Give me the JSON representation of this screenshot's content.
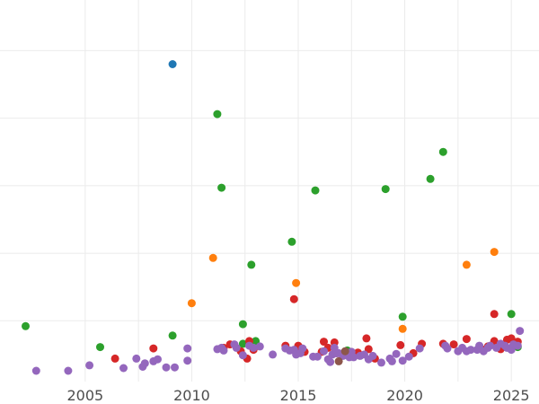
{
  "chart_data": {
    "type": "scatter",
    "title": "",
    "xlabel": "",
    "ylabel": "",
    "xlim": [
      2001.0,
      2026.3
    ],
    "ylim": [
      -0.4,
      5.25
    ],
    "x_ticks": [
      2005,
      2010,
      2015,
      2020,
      2025
    ],
    "x_tick_labels": [
      "2005",
      "2010",
      "2015",
      "2020",
      "2025"
    ],
    "y_gridlines": [
      0.5,
      1.5,
      2.5,
      3.5,
      4.5
    ],
    "x_minor_gridlines": [
      2007.5,
      2012.5,
      2017.5,
      2022.5
    ],
    "y_tick_labels_visible": false,
    "grid": true,
    "legend": "none",
    "colors": {
      "blue": "#1f77b4",
      "orange": "#ff7f0e",
      "green": "#2ca02c",
      "red": "#d62728",
      "purple": "#9467bd",
      "brown": "#8c564b"
    },
    "series": [
      {
        "color": "#1f77b4",
        "points": [
          [
            2009.1,
            4.3
          ]
        ]
      },
      {
        "color": "#ff7f0e",
        "points": [
          [
            2010.0,
            0.76
          ],
          [
            2011.0,
            1.43
          ],
          [
            2014.9,
            1.06
          ],
          [
            2019.9,
            0.38
          ],
          [
            2022.9,
            1.33
          ],
          [
            2024.2,
            1.52
          ]
        ]
      },
      {
        "color": "#2ca02c",
        "points": [
          [
            2002.2,
            0.42
          ],
          [
            2005.7,
            0.11
          ],
          [
            2009.1,
            0.28
          ],
          [
            2011.2,
            3.56
          ],
          [
            2011.4,
            2.47
          ],
          [
            2012.4,
            0.45
          ],
          [
            2012.4,
            0.16
          ],
          [
            2012.8,
            1.33
          ],
          [
            2013.0,
            0.2
          ],
          [
            2014.7,
            1.67
          ],
          [
            2015.8,
            2.43
          ],
          [
            2017.3,
            0.06
          ],
          [
            2019.1,
            2.45
          ],
          [
            2019.9,
            0.56
          ],
          [
            2021.2,
            2.6
          ],
          [
            2021.8,
            3.0
          ],
          [
            2025.0,
            0.6
          ],
          [
            2025.3,
            0.11
          ]
        ]
      },
      {
        "color": "#d62728",
        "points": [
          [
            2006.4,
            -0.06
          ],
          [
            2008.2,
            0.09
          ],
          [
            2011.5,
            0.1
          ],
          [
            2011.8,
            0.15
          ],
          [
            2012.3,
            0.05
          ],
          [
            2012.6,
            -0.06
          ],
          [
            2012.7,
            0.2
          ],
          [
            2012.9,
            0.07
          ],
          [
            2014.4,
            0.13
          ],
          [
            2014.8,
            0.82
          ],
          [
            2015.0,
            0.13
          ],
          [
            2015.1,
            0.07
          ],
          [
            2015.3,
            0.04
          ],
          [
            2016.1,
            0.04
          ],
          [
            2016.2,
            0.19
          ],
          [
            2016.4,
            0.1
          ],
          [
            2016.7,
            0.18
          ],
          [
            2016.8,
            0.02
          ],
          [
            2017.8,
            0.03
          ],
          [
            2018.2,
            0.24
          ],
          [
            2018.3,
            0.08
          ],
          [
            2018.6,
            -0.06
          ],
          [
            2019.8,
            0.14
          ],
          [
            2020.4,
            0.02
          ],
          [
            2020.8,
            0.16
          ],
          [
            2021.8,
            0.16
          ],
          [
            2022.3,
            0.15
          ],
          [
            2022.9,
            0.23
          ],
          [
            2023.7,
            0.07
          ],
          [
            2023.9,
            0.12
          ],
          [
            2024.2,
            0.6
          ],
          [
            2024.2,
            0.2
          ],
          [
            2024.5,
            0.08
          ],
          [
            2024.6,
            0.12
          ],
          [
            2024.8,
            0.22
          ],
          [
            2025.0,
            0.24
          ],
          [
            2025.3,
            0.19
          ]
        ]
      },
      {
        "color": "#9467bd",
        "points": [
          [
            2002.7,
            -0.24
          ],
          [
            2004.2,
            -0.24
          ],
          [
            2005.2,
            -0.16
          ],
          [
            2006.8,
            -0.2
          ],
          [
            2007.4,
            -0.06
          ],
          [
            2007.7,
            -0.18
          ],
          [
            2007.8,
            -0.13
          ],
          [
            2008.2,
            -0.1
          ],
          [
            2008.4,
            -0.07
          ],
          [
            2008.8,
            -0.19
          ],
          [
            2009.2,
            -0.19
          ],
          [
            2009.8,
            0.09
          ],
          [
            2009.8,
            -0.09
          ],
          [
            2011.2,
            0.08
          ],
          [
            2011.4,
            0.1
          ],
          [
            2011.5,
            0.06
          ],
          [
            2012.0,
            0.15
          ],
          [
            2012.1,
            0.1
          ],
          [
            2012.4,
            -0.01
          ],
          [
            2012.7,
            0.13
          ],
          [
            2012.9,
            0.1
          ],
          [
            2013.2,
            0.12
          ],
          [
            2013.8,
            0.0
          ],
          [
            2014.4,
            0.09
          ],
          [
            2014.6,
            0.06
          ],
          [
            2014.8,
            0.07
          ],
          [
            2014.9,
            0.0
          ],
          [
            2015.1,
            0.02
          ],
          [
            2015.2,
            0.09
          ],
          [
            2015.7,
            -0.03
          ],
          [
            2015.9,
            -0.03
          ],
          [
            2016.2,
            0.05
          ],
          [
            2016.4,
            -0.07
          ],
          [
            2016.5,
            -0.11
          ],
          [
            2016.6,
            0.0
          ],
          [
            2016.7,
            0.1
          ],
          [
            2016.8,
            0.02
          ],
          [
            2016.9,
            0.02
          ],
          [
            2017.1,
            -0.02
          ],
          [
            2017.3,
            0.02
          ],
          [
            2017.4,
            -0.04
          ],
          [
            2017.5,
            0.04
          ],
          [
            2017.6,
            -0.04
          ],
          [
            2017.9,
            -0.02
          ],
          [
            2018.1,
            0.0
          ],
          [
            2018.3,
            -0.07
          ],
          [
            2018.5,
            -0.02
          ],
          [
            2018.9,
            -0.12
          ],
          [
            2019.3,
            -0.06
          ],
          [
            2019.4,
            -0.1
          ],
          [
            2019.6,
            0.01
          ],
          [
            2019.9,
            -0.09
          ],
          [
            2020.2,
            -0.03
          ],
          [
            2020.7,
            0.09
          ],
          [
            2021.9,
            0.13
          ],
          [
            2022.0,
            0.09
          ],
          [
            2022.5,
            0.05
          ],
          [
            2022.7,
            0.1
          ],
          [
            2022.9,
            0.05
          ],
          [
            2023.1,
            0.07
          ],
          [
            2023.4,
            0.07
          ],
          [
            2023.5,
            0.13
          ],
          [
            2023.7,
            0.05
          ],
          [
            2023.9,
            0.1
          ],
          [
            2024.0,
            0.13
          ],
          [
            2024.3,
            0.1
          ],
          [
            2024.5,
            0.16
          ],
          [
            2024.7,
            0.13
          ],
          [
            2024.8,
            0.1
          ],
          [
            2025.0,
            0.07
          ],
          [
            2025.1,
            0.15
          ],
          [
            2025.3,
            0.13
          ],
          [
            2025.4,
            0.35
          ]
        ]
      },
      {
        "color": "#8c564b",
        "points": [
          [
            2016.9,
            -0.1
          ],
          [
            2017.2,
            0.05
          ]
        ]
      }
    ]
  }
}
